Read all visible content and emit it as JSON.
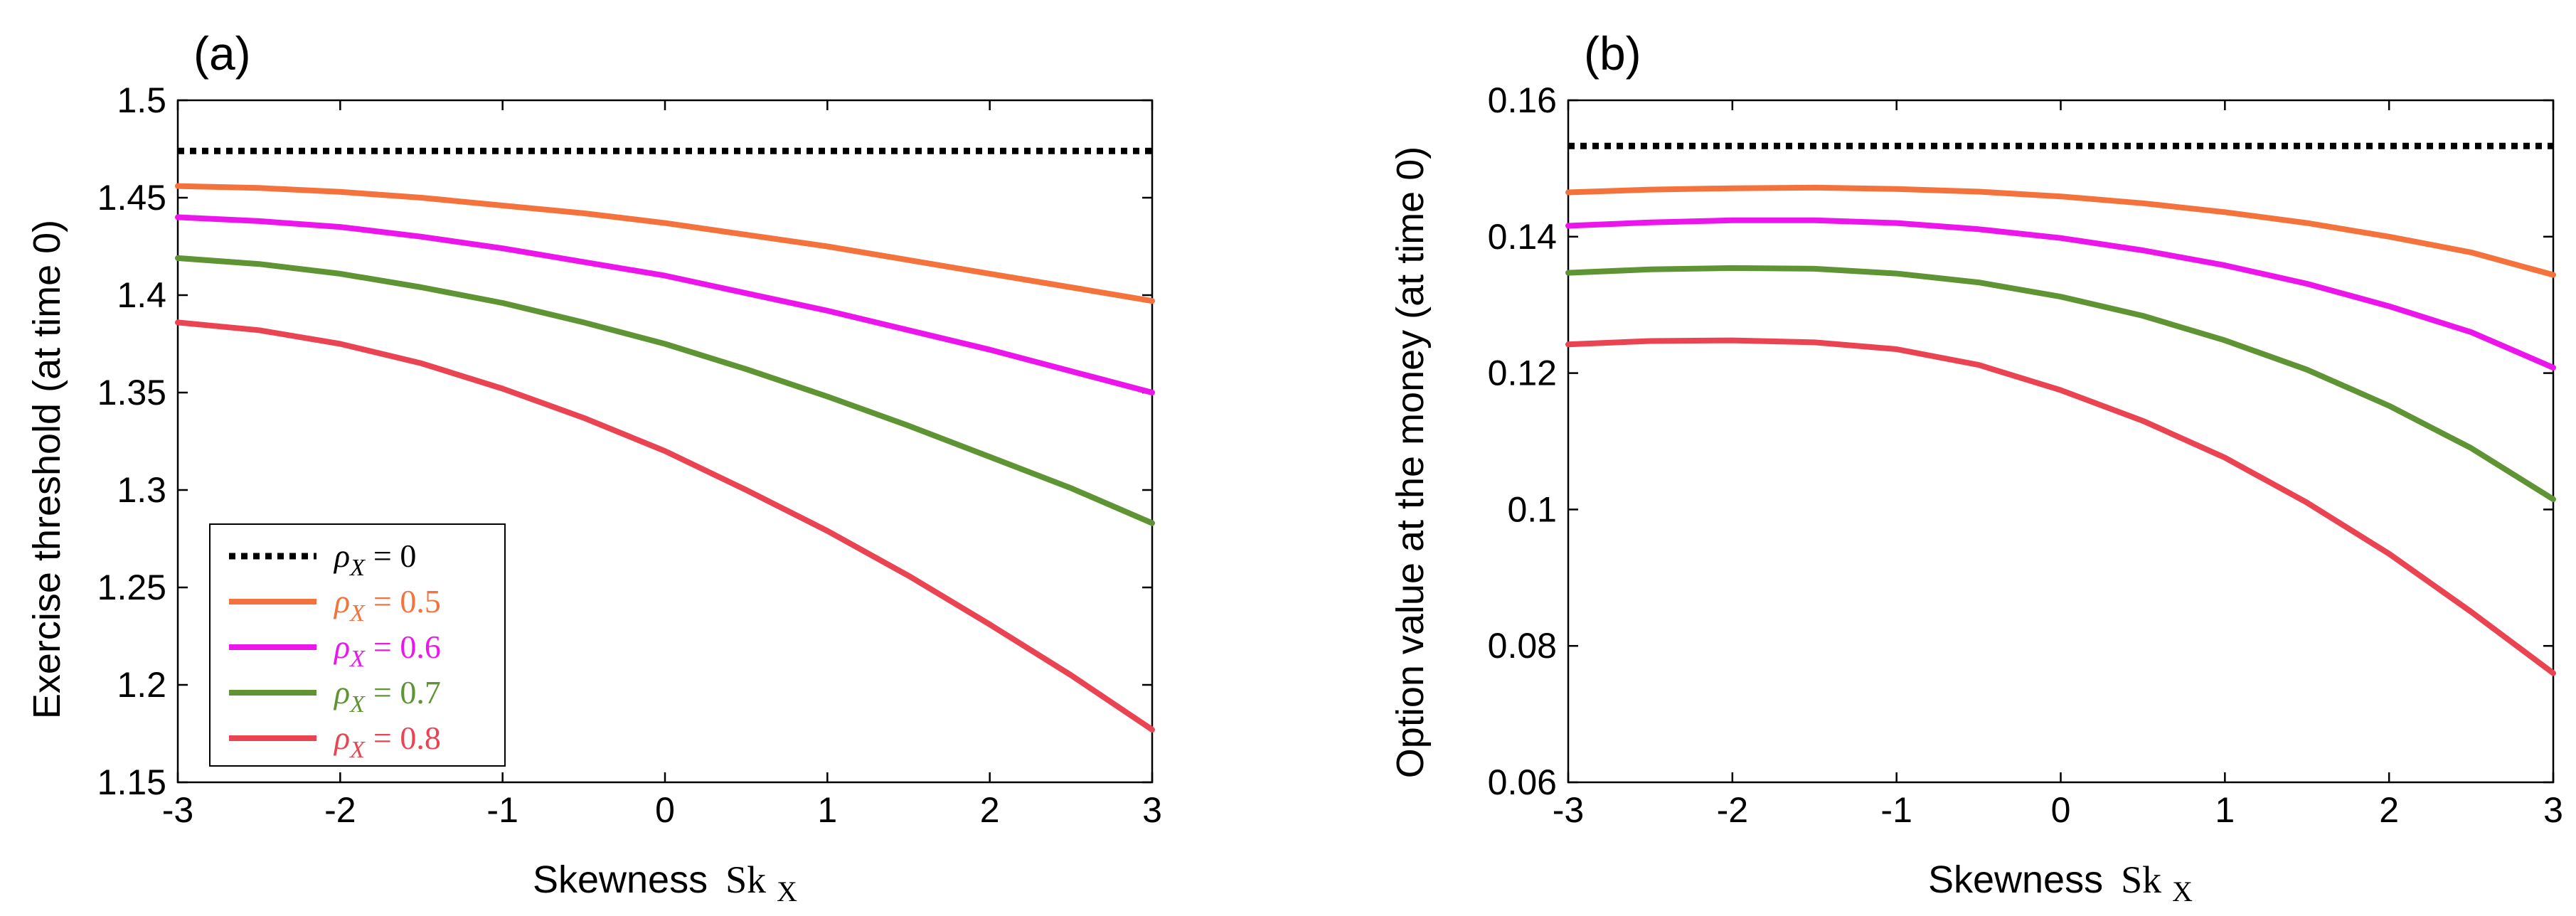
{
  "chart_data": [
    {
      "type": "line",
      "panel_label": "(a)",
      "xlabel": "Skewness Sk_X",
      "xlabel_parts": {
        "word": "Skewness",
        "symbol": "Sk",
        "subscript": "X"
      },
      "ylabel": "Exercise threshold (at time 0)",
      "xlim": [
        -3,
        3
      ],
      "ylim": [
        1.15,
        1.5
      ],
      "xticks": [
        -3,
        -2,
        -1,
        0,
        1,
        2,
        3
      ],
      "xtick_labels": [
        "-3",
        "-2",
        "-1",
        "0",
        "1",
        "2",
        "3"
      ],
      "yticks": [
        1.15,
        1.2,
        1.25,
        1.3,
        1.35,
        1.4,
        1.45,
        1.5
      ],
      "ytick_labels": [
        "1.15",
        "1.2",
        "1.25",
        "1.3",
        "1.35",
        "1.4",
        "1.45",
        "1.5"
      ],
      "grid": false,
      "legend_position": "bottom-left",
      "x": [
        -3,
        -2.5,
        -2,
        -1.5,
        -1,
        -0.5,
        0,
        0.5,
        1,
        1.5,
        2,
        2.5,
        3
      ],
      "series": [
        {
          "name": "ρX = 0",
          "legend_label": {
            "symbol": "ρ",
            "subscript": "X",
            "rest": "= 0"
          },
          "color": "#000000",
          "style": "dotted",
          "values": [
            1.474,
            1.474,
            1.474,
            1.474,
            1.474,
            1.474,
            1.474,
            1.474,
            1.474,
            1.474,
            1.474,
            1.474,
            1.474
          ]
        },
        {
          "name": "ρX = 0.5",
          "legend_label": {
            "symbol": "ρ",
            "subscript": "X",
            "rest": "= 0.5"
          },
          "color": "#f4733c",
          "style": "solid",
          "values": [
            1.456,
            1.455,
            1.453,
            1.45,
            1.446,
            1.442,
            1.437,
            1.431,
            1.425,
            1.418,
            1.411,
            1.404,
            1.397
          ]
        },
        {
          "name": "ρX = 0.6",
          "legend_label": {
            "symbol": "ρ",
            "subscript": "X",
            "rest": "= 0.6"
          },
          "color": "#ec16ec",
          "style": "solid",
          "values": [
            1.44,
            1.438,
            1.435,
            1.43,
            1.424,
            1.417,
            1.41,
            1.401,
            1.392,
            1.382,
            1.372,
            1.361,
            1.35
          ]
        },
        {
          "name": "ρX = 0.7",
          "legend_label": {
            "symbol": "ρ",
            "subscript": "X",
            "rest": "= 0.7"
          },
          "color": "#5e9433",
          "style": "solid",
          "values": [
            1.419,
            1.416,
            1.411,
            1.404,
            1.396,
            1.386,
            1.375,
            1.362,
            1.348,
            1.333,
            1.317,
            1.301,
            1.283
          ]
        },
        {
          "name": "ρX = 0.8",
          "legend_label": {
            "symbol": "ρ",
            "subscript": "X",
            "rest": "= 0.8"
          },
          "color": "#ea4452",
          "style": "solid",
          "values": [
            1.386,
            1.382,
            1.375,
            1.365,
            1.352,
            1.337,
            1.32,
            1.3,
            1.279,
            1.256,
            1.231,
            1.205,
            1.177
          ]
        }
      ]
    },
    {
      "type": "line",
      "panel_label": "(b)",
      "xlabel": "Skewness Sk_X",
      "xlabel_parts": {
        "word": "Skewness",
        "symbol": "Sk",
        "subscript": "X"
      },
      "ylabel": "Option value at the money (at time 0)",
      "xlim": [
        -3,
        3
      ],
      "ylim": [
        0.06,
        0.16
      ],
      "xticks": [
        -3,
        -2,
        -1,
        0,
        1,
        2,
        3
      ],
      "xtick_labels": [
        "-3",
        "-2",
        "-1",
        "0",
        "1",
        "2",
        "3"
      ],
      "yticks": [
        0.06,
        0.08,
        0.1,
        0.12,
        0.14,
        0.16
      ],
      "ytick_labels": [
        "0.06",
        "0.08",
        "0.1",
        "0.12",
        "0.14",
        "0.16"
      ],
      "grid": false,
      "legend_position": "none",
      "x": [
        -3,
        -2.5,
        -2,
        -1.5,
        -1,
        -0.5,
        0,
        0.5,
        1,
        1.5,
        2,
        2.5,
        3
      ],
      "series": [
        {
          "name": "ρX = 0",
          "color": "#000000",
          "style": "dotted",
          "values": [
            0.1533,
            0.1533,
            0.1533,
            0.1533,
            0.1533,
            0.1533,
            0.1533,
            0.1533,
            0.1533,
            0.1533,
            0.1533,
            0.1533,
            0.1533
          ]
        },
        {
          "name": "ρX = 0.5",
          "color": "#f4733c",
          "style": "solid",
          "values": [
            0.1465,
            0.1469,
            0.1471,
            0.1472,
            0.147,
            0.1466,
            0.1459,
            0.1449,
            0.1436,
            0.142,
            0.14,
            0.1377,
            0.1344
          ]
        },
        {
          "name": "ρX = 0.6",
          "color": "#ec16ec",
          "style": "solid",
          "values": [
            0.1416,
            0.1421,
            0.1424,
            0.1424,
            0.142,
            0.1411,
            0.1398,
            0.138,
            0.1358,
            0.1331,
            0.1298,
            0.126,
            0.1208
          ]
        },
        {
          "name": "ρX = 0.7",
          "color": "#5e9433",
          "style": "solid",
          "values": [
            0.1347,
            0.1352,
            0.1354,
            0.1353,
            0.1346,
            0.1333,
            0.1312,
            0.1284,
            0.1248,
            0.1205,
            0.1152,
            0.109,
            0.1015
          ]
        },
        {
          "name": "ρX = 0.8",
          "color": "#ea4452",
          "style": "solid",
          "values": [
            0.1242,
            0.1247,
            0.1248,
            0.1245,
            0.1235,
            0.1212,
            0.1175,
            0.113,
            0.1076,
            0.101,
            0.0935,
            0.085,
            0.076
          ]
        }
      ]
    }
  ]
}
